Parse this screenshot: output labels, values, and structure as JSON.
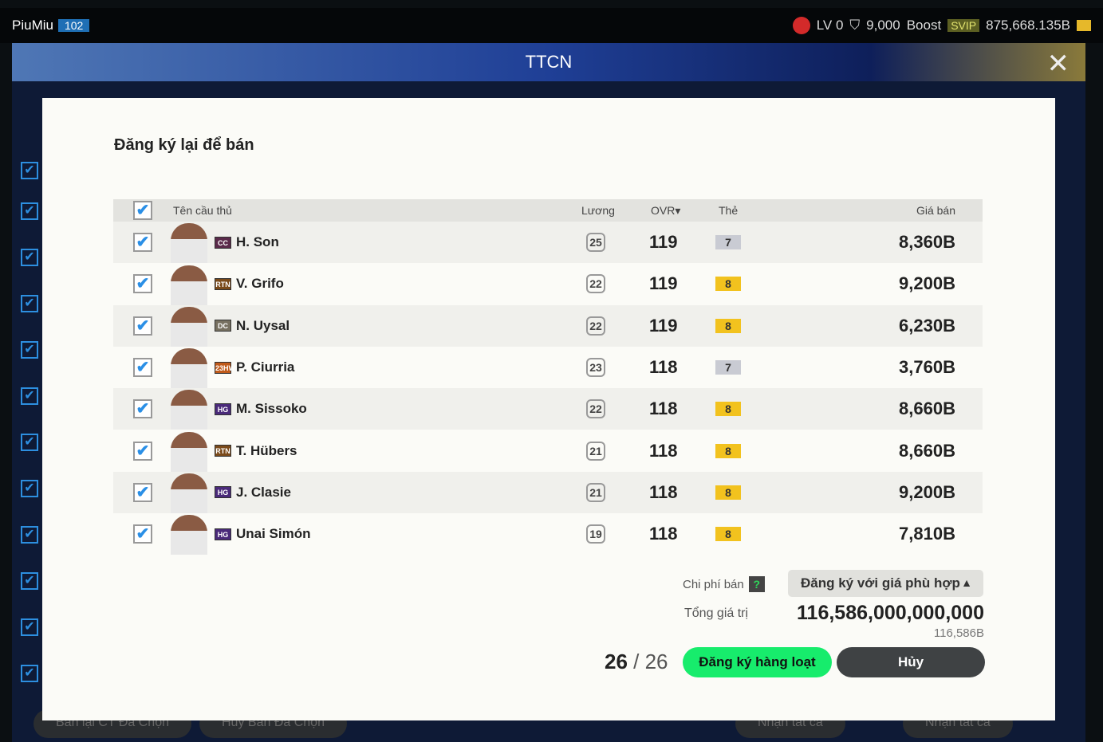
{
  "topbar": {
    "username": "PiuMiu",
    "level": "102",
    "lv": "LV 0",
    "points": "9,000",
    "boost": "Boost",
    "svip": "SVIP",
    "balance": "875,668.135B"
  },
  "header": {
    "title": "TTCN"
  },
  "background": {
    "buttons": [
      "Bán lại CT Đã Chọn",
      "Hủy Bán Đã Chọn",
      "Nhận tất cả",
      "Nhận tất cả"
    ]
  },
  "modal": {
    "title": "Đăng ký lại để bán",
    "columns": {
      "name": "Tên cầu thủ",
      "salary": "Lương",
      "ovr": "OVR▾",
      "grade": "Thẻ",
      "price": "Giá bán"
    },
    "rows": [
      {
        "season": "CC",
        "season_color": "#5a2a4a",
        "name": "H. Son",
        "salary": "25",
        "ovr": "119",
        "grade": "7",
        "grade_color": "#c9cbd3",
        "price": "8,360B"
      },
      {
        "season": "RTN",
        "season_color": "#7a4a1a",
        "name": "V. Grifo",
        "salary": "22",
        "ovr": "119",
        "grade": "8",
        "grade_color": "#f2c21e",
        "price": "9,200B"
      },
      {
        "season": "DC",
        "season_color": "#777060",
        "name": "N. Uysal",
        "salary": "22",
        "ovr": "119",
        "grade": "8",
        "grade_color": "#f2c21e",
        "price": "6,230B"
      },
      {
        "season": "23HW",
        "season_color": "#c05a1a",
        "name": "P. Ciurria",
        "salary": "23",
        "ovr": "118",
        "grade": "7",
        "grade_color": "#c9cbd3",
        "price": "3,760B"
      },
      {
        "season": "HG",
        "season_color": "#4a2a7a",
        "name": "M. Sissoko",
        "salary": "22",
        "ovr": "118",
        "grade": "8",
        "grade_color": "#f2c21e",
        "price": "8,660B"
      },
      {
        "season": "RTN",
        "season_color": "#7a4a1a",
        "name": "T. Hübers",
        "salary": "21",
        "ovr": "118",
        "grade": "8",
        "grade_color": "#f2c21e",
        "price": "8,660B"
      },
      {
        "season": "HG",
        "season_color": "#4a2a7a",
        "name": "J. Clasie",
        "salary": "21",
        "ovr": "118",
        "grade": "8",
        "grade_color": "#f2c21e",
        "price": "9,200B"
      },
      {
        "season": "HG",
        "season_color": "#4a2a7a",
        "name": "Unai Simón",
        "salary": "19",
        "ovr": "118",
        "grade": "8",
        "grade_color": "#f2c21e",
        "price": "7,810B"
      }
    ],
    "fee_label": "Chi phí bán",
    "help": "?",
    "dropdown": "Đăng ký với giá phù hợp",
    "total_label": "Tổng giá trị",
    "total": "116,586,000,000,000",
    "total_short": "116,586B",
    "selected": "26",
    "of": "26",
    "register_button": "Đăng ký hàng loạt",
    "cancel_button": "Hủy"
  }
}
